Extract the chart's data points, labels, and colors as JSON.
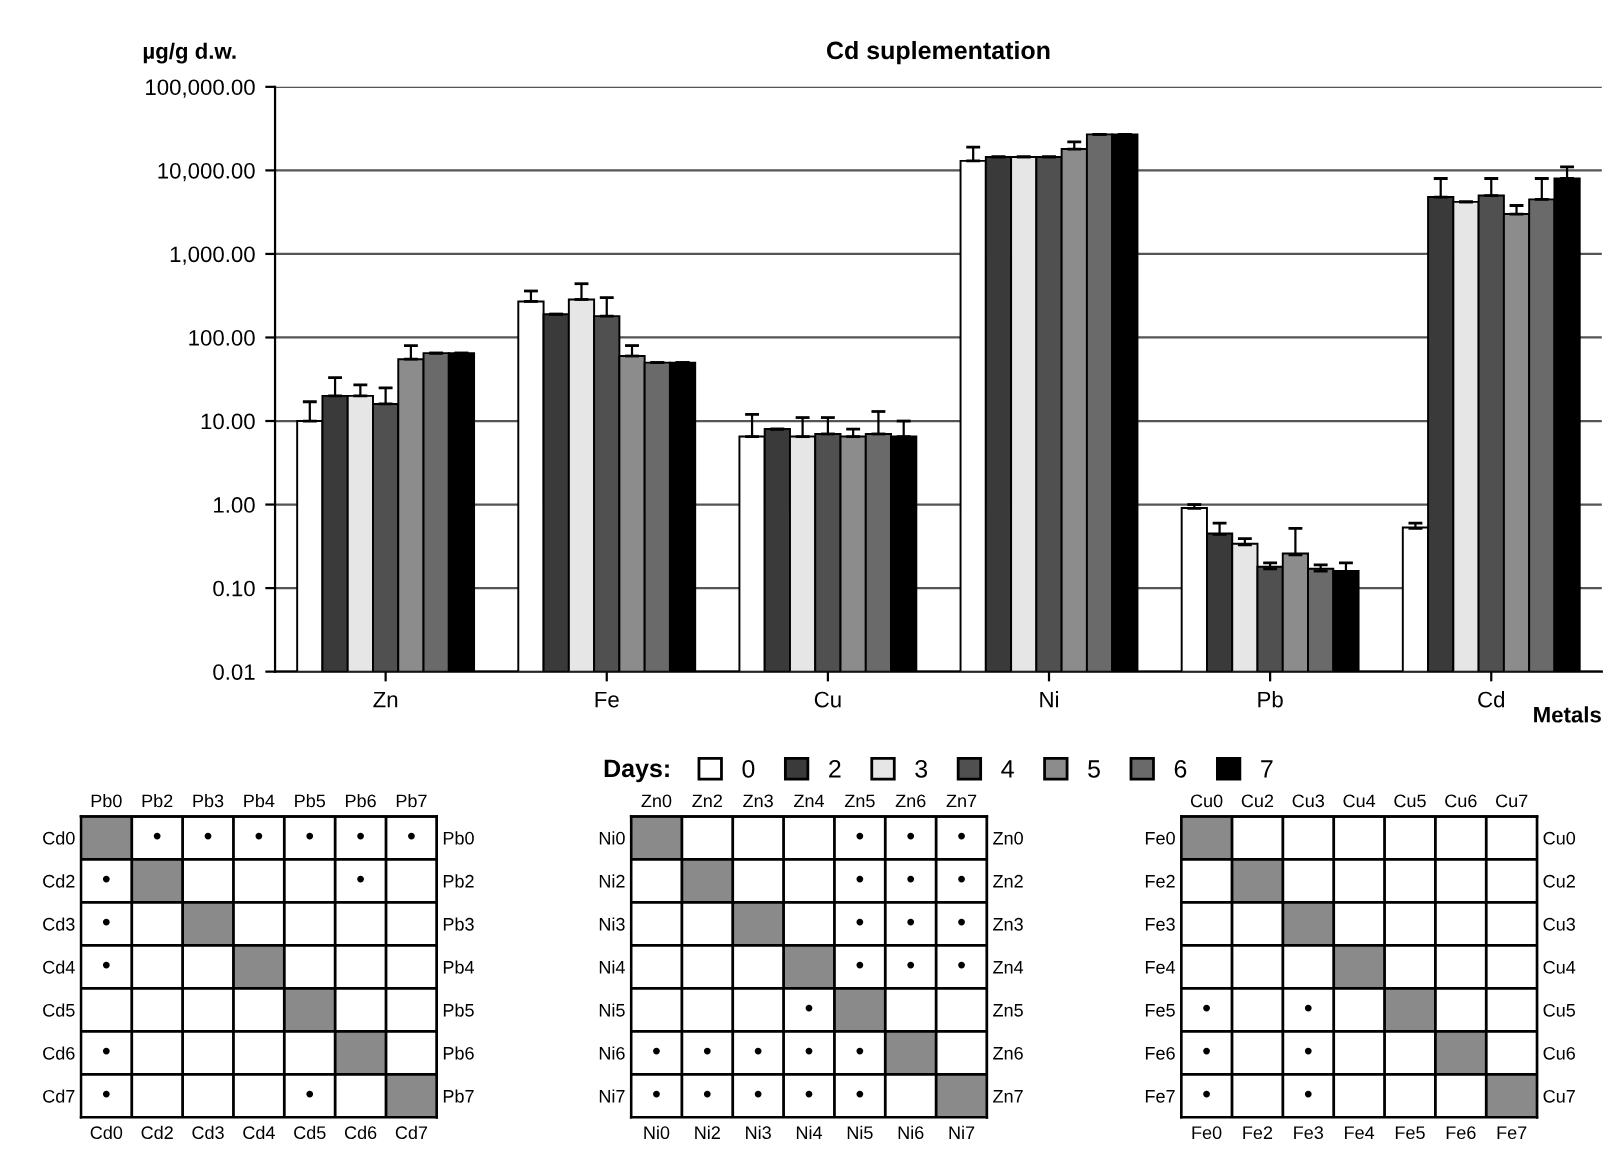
{
  "chart_data": [
    {
      "type": "bar",
      "title": "Cd suplementation",
      "ylabel": "µg/g d.w.",
      "xlabel": "Metals",
      "legend_title": "Days:",
      "categories": [
        "Zn",
        "Fe",
        "Cu",
        "Ni",
        "Pb",
        "Cd"
      ],
      "log": true,
      "grid": "y",
      "legend": "bottom",
      "ylim": [
        0.01,
        100000
      ],
      "yticks": [
        {
          "value": 0.01,
          "label": "0.01"
        },
        {
          "value": 0.1,
          "label": "0.10"
        },
        {
          "value": 1,
          "label": "1.00"
        },
        {
          "value": 10,
          "label": "10.00"
        },
        {
          "value": 100,
          "label": "100.00"
        },
        {
          "value": 1000,
          "label": "1,000.00"
        },
        {
          "value": 10000,
          "label": "10,000.00"
        },
        {
          "value": 100000,
          "label": "100,000.00"
        }
      ],
      "series": [
        {
          "name": "0",
          "color": "#ffffff",
          "values": [
            10,
            270,
            6.5,
            13000,
            0.9,
            0.52
          ],
          "errors": [
            7,
            90,
            5.5,
            6000,
            0.1,
            0.08
          ]
        },
        {
          "name": "2",
          "color": "#3a3a3a",
          "values": [
            20,
            190,
            8,
            14500,
            0.44,
            4800
          ],
          "errors": [
            13,
            null,
            null,
            null,
            0.16,
            3200
          ]
        },
        {
          "name": "3",
          "color": "#e6e6e6",
          "values": [
            20,
            285,
            6.5,
            14500,
            0.33,
            4200
          ],
          "errors": [
            7,
            155,
            4.5,
            null,
            0.06,
            null
          ]
        },
        {
          "name": "4",
          "color": "#505050",
          "values": [
            16,
            180,
            7,
            14500,
            0.17,
            5000
          ],
          "errors": [
            9,
            120,
            4,
            null,
            0.03,
            3000
          ]
        },
        {
          "name": "5",
          "color": "#8c8c8c",
          "values": [
            55,
            60,
            6.5,
            18000,
            0.25,
            3000
          ],
          "errors": [
            25,
            20,
            1.5,
            4000,
            0.27,
            800
          ]
        },
        {
          "name": "6",
          "color": "#6a6a6a",
          "values": [
            65,
            50,
            7,
            27000,
            0.16,
            4500
          ],
          "errors": [
            null,
            null,
            6,
            null,
            0.03,
            3500
          ]
        },
        {
          "name": "7",
          "color": "#000000",
          "values": [
            65,
            50,
            6.5,
            27000,
            0.15,
            8000
          ],
          "errors": [
            null,
            null,
            3.5,
            null,
            0.05,
            3000
          ]
        }
      ]
    },
    {
      "type": "heatmap",
      "grid": true,
      "categories": [
        "Pb0",
        "Pb2",
        "Pb3",
        "Pb4",
        "Pb5",
        "Pb6",
        "Pb7"
      ],
      "y_categories": [
        "Cd0",
        "Cd2",
        "Cd3",
        "Cd4",
        "Cd5",
        "Cd6",
        "Cd7"
      ],
      "y2_categories": [
        "Pb0",
        "Pb2",
        "Pb3",
        "Pb4",
        "Pb5",
        "Pb6",
        "Pb7"
      ],
      "annotations": [
        "Cd0",
        "Cd2",
        "Cd3",
        "Cd4",
        "Cd5",
        "Cd6",
        "Cd7"
      ],
      "cells": [
        [
          null,
          null,
          null,
          null,
          null,
          null,
          null
        ],
        [
          null,
          null,
          null,
          null,
          null,
          null,
          null
        ],
        [
          null,
          null,
          null,
          null,
          null,
          null,
          null
        ],
        [
          null,
          null,
          null,
          null,
          null,
          null,
          null
        ],
        [
          null,
          null,
          null,
          null,
          null,
          null,
          null
        ],
        [
          null,
          null,
          null,
          null,
          null,
          null,
          null
        ],
        [
          null,
          null,
          null,
          null,
          null,
          null,
          null
        ]
      ],
      "cell_labels": [
        [
          null,
          "•",
          "•",
          "•",
          "•",
          "•",
          "•"
        ],
        [
          "•",
          null,
          null,
          null,
          null,
          "•",
          null
        ],
        [
          "•",
          null,
          null,
          null,
          null,
          null,
          null
        ],
        [
          "•",
          null,
          null,
          null,
          null,
          null,
          null
        ],
        [
          null,
          null,
          null,
          null,
          null,
          null,
          null
        ],
        [
          "•",
          null,
          null,
          null,
          null,
          null,
          null
        ],
        [
          "•",
          null,
          null,
          null,
          "•",
          null,
          null
        ]
      ]
    },
    {
      "type": "heatmap",
      "grid": true,
      "categories": [
        "Zn0",
        "Zn2",
        "Zn3",
        "Zn4",
        "Zn5",
        "Zn6",
        "Zn7"
      ],
      "y_categories": [
        "Ni0",
        "Ni2",
        "Ni3",
        "Ni4",
        "Ni5",
        "Ni6",
        "Ni7"
      ],
      "y2_categories": [
        "Zn0",
        "Zn2",
        "Zn3",
        "Zn4",
        "Zn5",
        "Zn6",
        "Zn7"
      ],
      "annotations": [
        "Ni0",
        "Ni2",
        "Ni3",
        "Ni4",
        "Ni5",
        "Ni6",
        "Ni7"
      ],
      "cells": [
        [
          null,
          null,
          null,
          null,
          null,
          null,
          null
        ],
        [
          null,
          null,
          null,
          null,
          null,
          null,
          null
        ],
        [
          null,
          null,
          null,
          null,
          null,
          null,
          null
        ],
        [
          null,
          null,
          null,
          null,
          null,
          null,
          null
        ],
        [
          null,
          null,
          null,
          null,
          null,
          null,
          null
        ],
        [
          null,
          null,
          null,
          null,
          null,
          null,
          null
        ],
        [
          null,
          null,
          null,
          null,
          null,
          null,
          null
        ]
      ],
      "cell_labels": [
        [
          null,
          null,
          null,
          null,
          "•",
          "•",
          "•"
        ],
        [
          null,
          null,
          null,
          null,
          "•",
          "•",
          "•"
        ],
        [
          null,
          null,
          null,
          null,
          "•",
          "•",
          "•"
        ],
        [
          null,
          null,
          null,
          null,
          "•",
          "•",
          "•"
        ],
        [
          null,
          null,
          null,
          "•",
          null,
          null,
          null
        ],
        [
          "•",
          "•",
          "•",
          "•",
          "•",
          null,
          null
        ],
        [
          "•",
          "•",
          "•",
          "•",
          "•",
          null,
          null
        ]
      ]
    },
    {
      "type": "heatmap",
      "grid": true,
      "categories": [
        "Cu0",
        "Cu2",
        "Cu3",
        "Cu4",
        "Cu5",
        "Cu6",
        "Cu7"
      ],
      "y_categories": [
        "Fe0",
        "Fe2",
        "Fe3",
        "Fe4",
        "Fe5",
        "Fe6",
        "Fe7"
      ],
      "y2_categories": [
        "Cu0",
        "Cu2",
        "Cu3",
        "Cu4",
        "Cu5",
        "Cu6",
        "Cu7"
      ],
      "annotations": [
        "Fe0",
        "Fe2",
        "Fe3",
        "Fe4",
        "Fe5",
        "Fe6",
        "Fe7"
      ],
      "cells": [
        [
          null,
          null,
          null,
          null,
          null,
          null,
          null
        ],
        [
          null,
          null,
          null,
          null,
          null,
          null,
          null
        ],
        [
          null,
          null,
          null,
          null,
          null,
          null,
          null
        ],
        [
          null,
          null,
          null,
          null,
          null,
          null,
          null
        ],
        [
          null,
          null,
          null,
          null,
          null,
          null,
          null
        ],
        [
          null,
          null,
          null,
          null,
          null,
          null,
          null
        ],
        [
          null,
          null,
          null,
          null,
          null,
          null,
          null
        ]
      ],
      "cell_labels": [
        [
          null,
          null,
          null,
          null,
          null,
          null,
          null
        ],
        [
          null,
          null,
          null,
          null,
          null,
          null,
          null
        ],
        [
          null,
          null,
          null,
          null,
          null,
          null,
          null
        ],
        [
          null,
          null,
          null,
          null,
          null,
          null,
          null
        ],
        [
          "•",
          null,
          "•",
          null,
          null,
          null,
          null
        ],
        [
          "•",
          null,
          "•",
          null,
          null,
          null,
          null
        ],
        [
          "•",
          null,
          "•",
          null,
          null,
          null,
          null
        ]
      ]
    }
  ]
}
